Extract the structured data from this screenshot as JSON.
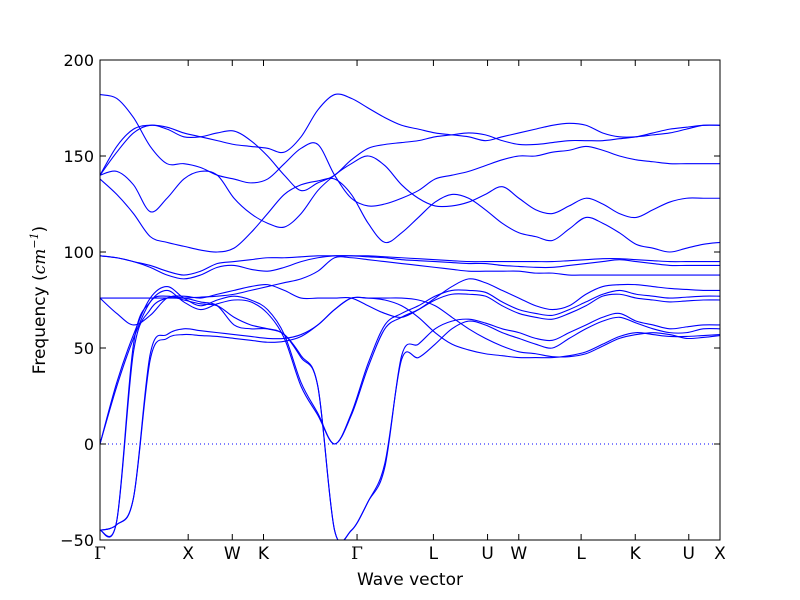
{
  "chart_data": {
    "type": "line",
    "xlabel": "Wave vector",
    "ylabel_prefix": "Frequency (",
    "ylabel_unit": "cm",
    "ylabel_exp": "−1",
    "ylabel_suffix": ")",
    "ylim": [
      -50,
      200
    ],
    "yticks": [
      -50,
      0,
      50,
      100,
      150,
      200
    ],
    "ytick_labels": [
      "−50",
      "0",
      "50",
      "100",
      "150",
      "200"
    ],
    "grid": false,
    "legend": "none",
    "line_color": "#0000ff",
    "zero_line_color": "#0000ff",
    "kpoints": [
      {
        "label": "Γ",
        "x": 0.0
      },
      {
        "label": "X",
        "x": 1.0
      },
      {
        "label": "W",
        "x": 1.5
      },
      {
        "label": "K",
        "x": 1.854
      },
      {
        "label": "Γ",
        "x": 2.915
      },
      {
        "label": "L",
        "x": 3.781
      },
      {
        "label": "U",
        "x": 4.395
      },
      {
        "label": "W",
        "x": 4.749
      },
      {
        "label": "L",
        "x": 5.456
      },
      {
        "label": "K",
        "x": 6.07
      },
      {
        "label": "U",
        "x": 6.677
      },
      {
        "label": "X",
        "x": 7.031
      }
    ],
    "xlim": [
      0,
      7.031
    ],
    "series_values": [
      [
        -45,
        -42,
        -28,
        44,
        55,
        57,
        56.5,
        56,
        55,
        54,
        53,
        53.5,
        56,
        62,
        70,
        76,
        76,
        76,
        76,
        75,
        72,
        66,
        60,
        55,
        51,
        48,
        47,
        45.5,
        45.5,
        47,
        51,
        55,
        57,
        58,
        57,
        55,
        55.5,
        56.5
      ],
      [
        -45,
        -42,
        -28,
        47,
        57,
        60,
        59,
        58,
        57,
        56,
        55,
        55,
        57,
        62,
        70,
        76,
        76,
        75,
        72,
        66,
        58,
        52,
        49,
        47,
        46,
        45,
        45,
        45,
        46,
        48,
        52,
        56,
        58,
        57,
        56,
        56,
        56.5,
        57
      ],
      [
        -45,
        -40,
        48,
        70,
        76,
        76,
        74,
        72,
        62,
        60,
        60,
        57,
        45,
        30,
        -45,
        -45,
        -30,
        -10,
        44,
        45,
        52,
        60,
        64,
        62,
        58,
        55,
        52,
        50,
        55,
        60,
        64,
        66,
        63,
        60,
        58,
        58,
        60,
        60
      ],
      [
        -45,
        -40,
        52,
        74,
        77,
        75,
        73,
        72,
        66,
        62,
        60,
        57,
        46,
        30,
        -45,
        -45,
        -30,
        -12,
        46,
        52,
        60,
        64,
        65,
        63,
        60,
        58,
        55,
        54,
        58,
        62,
        66,
        68,
        64,
        62,
        60,
        61,
        62,
        62
      ],
      [
        0,
        30,
        55,
        74,
        80,
        74,
        70,
        73,
        75,
        74,
        68,
        55,
        30,
        15,
        0,
        15,
        40,
        60,
        66,
        70,
        75,
        78,
        78,
        77,
        72,
        68,
        66,
        65,
        68,
        72,
        77,
        78,
        76,
        75,
        74,
        74.5,
        75,
        75
      ],
      [
        0,
        32,
        57,
        76,
        82,
        76,
        72,
        75,
        77,
        75,
        70,
        57,
        32,
        16,
        0,
        16,
        42,
        62,
        68,
        72,
        77,
        80,
        80,
        79,
        74,
        70,
        68,
        67,
        70,
        74,
        78,
        80,
        78,
        77,
        76,
        76.5,
        77,
        77
      ],
      [
        76,
        68,
        62,
        67,
        76,
        77,
        76,
        78,
        80,
        82,
        83,
        80,
        76,
        76,
        76,
        76,
        72,
        68,
        66,
        70,
        76,
        82,
        86,
        84,
        80,
        76,
        72,
        70,
        72,
        78,
        82,
        83,
        83,
        82,
        81,
        80.5,
        80,
        80
      ],
      [
        76,
        76,
        76,
        76,
        76,
        76,
        76.5,
        77,
        78,
        80,
        82,
        84,
        86,
        90,
        97,
        97,
        96,
        95,
        94,
        93,
        92,
        91,
        90,
        90,
        90,
        90,
        89,
        89,
        88,
        88,
        88,
        88,
        88,
        88,
        88,
        88,
        88,
        88
      ],
      [
        98,
        97,
        95,
        92,
        88,
        86,
        88,
        92,
        93,
        91,
        90,
        92,
        95,
        97,
        98,
        98,
        97.5,
        97,
        96,
        95.5,
        95,
        94.5,
        94,
        94,
        93,
        92.5,
        92,
        92,
        93,
        94,
        95,
        96,
        95,
        94,
        93,
        93,
        93,
        93
      ],
      [
        98,
        97,
        95,
        93,
        90,
        88,
        90,
        94,
        95,
        96,
        97,
        97,
        97.5,
        98,
        98,
        98,
        98,
        97.5,
        97,
        96.5,
        96,
        95.5,
        95,
        95,
        95,
        95,
        95,
        95,
        95.5,
        96,
        96.5,
        96.5,
        96,
        95.5,
        95,
        95,
        95,
        95
      ],
      [
        138,
        130,
        120,
        108,
        105,
        103,
        101,
        100,
        102,
        110,
        120,
        130,
        135,
        137,
        138,
        130,
        115,
        105,
        110,
        118,
        126,
        130,
        128,
        122,
        115,
        110,
        108,
        106,
        112,
        118,
        115,
        110,
        104,
        102,
        100,
        102,
        104,
        105
      ],
      [
        140,
        142,
        135,
        121,
        128,
        138,
        142,
        140,
        128,
        120,
        115,
        113,
        120,
        132,
        140,
        146,
        150,
        145,
        135,
        128,
        124,
        124,
        126,
        130,
        134,
        128,
        122,
        120,
        124,
        128,
        125,
        120,
        118,
        122,
        126,
        128,
        128,
        128
      ],
      [
        182,
        180,
        170,
        155,
        146,
        146,
        144,
        140,
        138,
        136,
        138,
        146,
        154,
        156,
        140,
        128,
        124,
        125,
        128,
        132,
        138,
        140,
        142,
        145,
        148,
        150,
        150,
        152,
        153,
        155,
        153,
        150,
        148,
        147,
        146,
        146,
        146,
        146
      ],
      [
        140,
        152,
        162,
        166,
        164,
        160,
        160,
        162,
        163,
        158,
        150,
        140,
        132,
        136,
        140,
        148,
        154,
        156,
        157,
        158,
        160,
        161,
        162,
        161,
        158,
        156,
        156,
        157,
        158,
        158,
        158,
        159,
        160,
        162,
        164,
        165,
        166,
        166
      ],
      [
        140,
        155,
        164,
        166,
        165,
        162,
        160,
        158,
        156,
        155,
        154,
        152,
        160,
        174,
        182,
        180,
        175,
        170,
        166,
        164,
        162,
        161,
        160,
        158,
        160,
        162,
        164,
        166,
        167,
        166,
        162,
        160,
        160,
        161,
        162,
        164,
        166,
        166
      ]
    ]
  }
}
